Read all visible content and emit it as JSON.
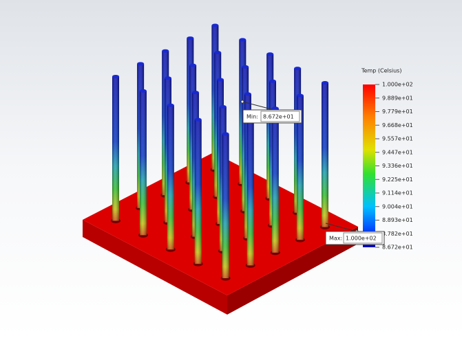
{
  "legend": {
    "title": "Temp (Celsius)",
    "labels": [
      "1.000e+02",
      "9.889e+01",
      "9.779e+01",
      "9.668e+01",
      "9.557e+01",
      "9.447e+01",
      "9.336e+01",
      "9.225e+01",
      "9.114e+01",
      "9.004e+01",
      "8.893e+01",
      "8.782e+01",
      "8.672e+01"
    ]
  },
  "probes": {
    "min": {
      "label": "Min:",
      "value": "8.672e+01"
    },
    "max": {
      "label": "Max:",
      "value": "1.000e+02"
    }
  }
}
